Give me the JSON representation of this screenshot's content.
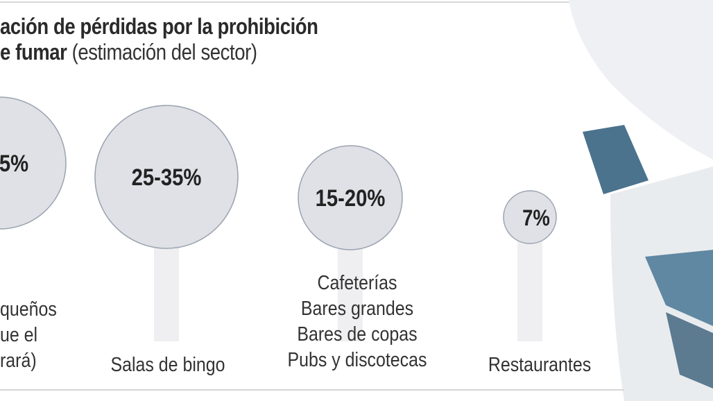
{
  "chart_data": {
    "type": "bubble",
    "title_bold_line1": "ación de pérdidas por la prohibición",
    "title_bold_line2": "e fumar",
    "subtitle": "(estimación del sector)",
    "categories": [
      [
        "queños",
        "ue el",
        "rará)"
      ],
      [
        "Salas de bingo"
      ],
      [
        "Cafeterías",
        "Bares grandes",
        "Bares de copas",
        "Pubs y discotecas"
      ],
      [
        "Restaurantes"
      ]
    ],
    "value_labels": [
      "5%",
      "25-35%",
      "15-20%",
      "7%"
    ],
    "values_percent_range": [
      [
        null,
        5
      ],
      [
        25,
        35
      ],
      [
        15,
        20
      ],
      [
        7,
        7
      ]
    ],
    "colors": {
      "bubble": "#dfe1e6",
      "bubble_stroke": "#9aa3b0",
      "stem": "#efeff1",
      "photo_accent": "#2b5a7a"
    }
  }
}
